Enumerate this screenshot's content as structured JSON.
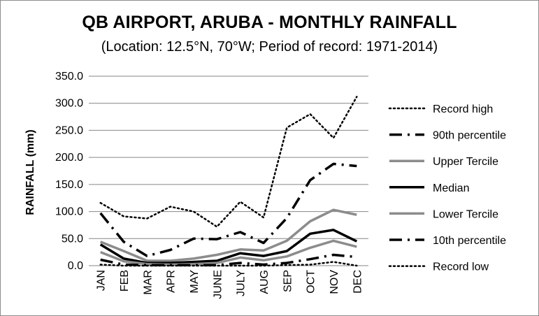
{
  "chart_data": {
    "type": "line",
    "title": "QB AIRPORT, ARUBA - MONTHLY RAINFALL",
    "subtitle": "(Location: 12.5°N, 70°W; Period of record: 1971-2014)",
    "xlabel": "",
    "ylabel": "RAINFALL (mm)",
    "ylim": [
      0,
      350
    ],
    "yticks": [
      "0.0",
      "50.0",
      "100.0",
      "150.0",
      "200.0",
      "250.0",
      "300.0",
      "350.0"
    ],
    "categories": [
      "JAN",
      "FEB",
      "MAR",
      "APR",
      "MAY",
      "JUNE",
      "JULY",
      "AUG",
      "SEP",
      "OCT",
      "NOV",
      "DEC"
    ],
    "grid": true,
    "legend_position": "right",
    "series": [
      {
        "name": "Record high",
        "style": "dotted",
        "color": "#000000",
        "values": [
          116,
          91,
          87,
          109,
          100,
          72,
          118,
          89,
          255,
          280,
          236,
          312
        ]
      },
      {
        "name": "90th percentile",
        "style": "dashdot",
        "color": "#000000",
        "values": [
          97,
          44,
          18,
          29,
          50,
          49,
          62,
          42,
          88,
          158,
          188,
          184
        ]
      },
      {
        "name": "Upper Tercile",
        "style": "solid",
        "color": "#8c8c8c",
        "values": [
          44,
          27,
          9,
          9,
          13,
          20,
          30,
          28,
          46,
          82,
          103,
          94
        ]
      },
      {
        "name": "Median",
        "style": "solid",
        "color": "#000000",
        "values": [
          39,
          13,
          5,
          5,
          7,
          9,
          23,
          18,
          27,
          59,
          66,
          45
        ]
      },
      {
        "name": "Lower Tercile",
        "style": "solid",
        "color": "#8c8c8c",
        "values": [
          25,
          8,
          3,
          2,
          3,
          5,
          15,
          10,
          17,
          33,
          46,
          35
        ]
      },
      {
        "name": "10th percentile",
        "style": "dashdot",
        "color": "#000000",
        "values": [
          11,
          2,
          1,
          1,
          1,
          1,
          5,
          2,
          5,
          12,
          20,
          16
        ]
      },
      {
        "name": "Record low",
        "style": "dotted",
        "color": "#000000",
        "values": [
          2,
          0,
          0,
          0,
          0,
          0,
          0,
          0,
          1,
          2,
          7,
          0
        ]
      }
    ]
  }
}
